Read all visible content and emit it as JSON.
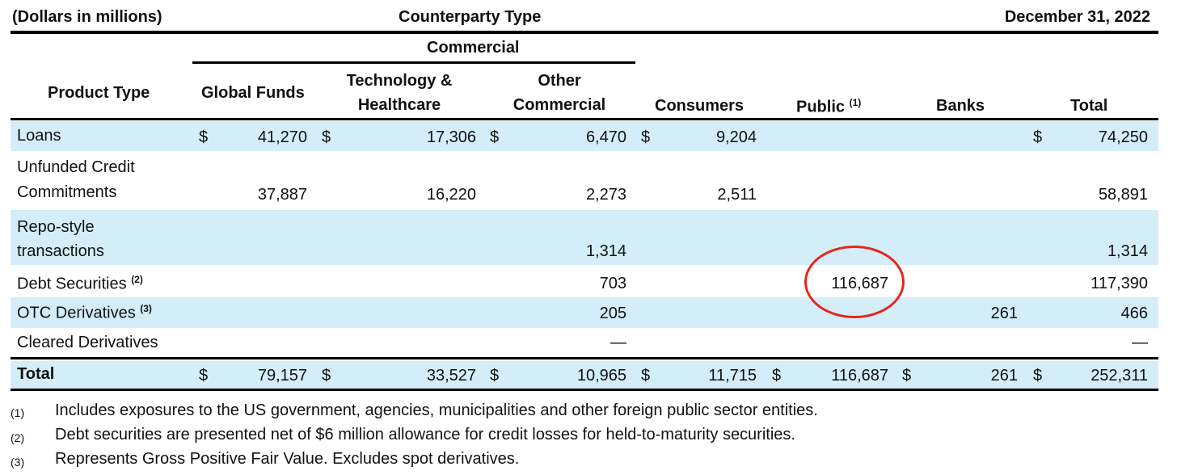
{
  "header": {
    "units": "(Dollars in millions)",
    "group_title": "Counterparty Type",
    "date": "December 31, 2022",
    "commercial": "Commercial"
  },
  "columns": {
    "product_type": "Product Type",
    "global_funds": "Global Funds",
    "tech_line1": "Technology &",
    "tech_line2": "Healthcare",
    "other_line1": "Other",
    "other_line2": "Commercial",
    "consumers": "Consumers",
    "public": "Public",
    "public_note": "(1)",
    "banks": "Banks",
    "total": "Total"
  },
  "currency": "$",
  "rows": {
    "loans": {
      "label": "Loans",
      "global": "41,270",
      "tech": "17,306",
      "other": "6,470",
      "consumers": "9,204",
      "total": "74,250"
    },
    "unfunded": {
      "label_line1": "Unfunded Credit",
      "label_line2": "Commitments",
      "global": "37,887",
      "tech": "16,220",
      "other": "2,273",
      "consumers": "2,511",
      "total": "58,891"
    },
    "repo": {
      "label_line1": "Repo-style",
      "label_line2": "transactions",
      "other": "1,314",
      "total": "1,314"
    },
    "debt": {
      "label": "Debt Securities",
      "note": "(2)",
      "other": "703",
      "public": "116,687",
      "total": "117,390"
    },
    "otc": {
      "label": "OTC Derivatives",
      "note": "(3)",
      "other": "205",
      "banks": "261",
      "total": "466"
    },
    "cleared": {
      "label": "Cleared Derivatives",
      "other": "—",
      "total": "—"
    },
    "total": {
      "label": "Total",
      "global": "79,157",
      "tech": "33,527",
      "other": "10,965",
      "consumers": "11,715",
      "public": "116,687",
      "banks": "261",
      "total": "252,311"
    }
  },
  "footnotes": [
    {
      "num": "(1)",
      "text": "Includes exposures to the US government, agencies, municipalities and other foreign public sector entities."
    },
    {
      "num": "(2)",
      "text": "Debt securities are presented net of $6 million allowance for credit losses for held-to-maturity securities."
    },
    {
      "num": "(3)",
      "text": "Represents Gross Positive Fair Value. Excludes spot derivatives."
    }
  ],
  "annotation_color": "#e8261c"
}
